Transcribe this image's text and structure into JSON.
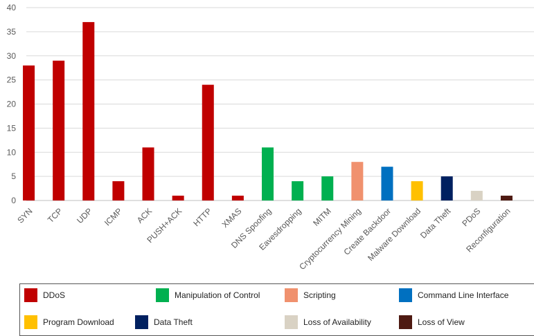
{
  "chart_data": {
    "type": "bar",
    "title": "",
    "xlabel": "",
    "ylabel": "",
    "ylim": [
      0,
      40
    ],
    "yticks": [
      0,
      5,
      10,
      15,
      20,
      25,
      30,
      35,
      40
    ],
    "grid": true,
    "legend_position": "bottom",
    "categories": [
      "SYN",
      "TCP",
      "UDP",
      "ICMP",
      "ACK",
      "PUSH+ACK",
      "HTTP",
      "XMAS",
      "DNS Spoofing",
      "Eavesdropping",
      "MITM",
      "Cryptocurrency Mining",
      "Create Backdoor",
      "Malware Download",
      "Data Theft",
      "PDoS",
      "Reconfiguration"
    ],
    "values": [
      28,
      29,
      37,
      4,
      11,
      1,
      24,
      1,
      11,
      4,
      5,
      8,
      7,
      4,
      5,
      2,
      1
    ],
    "bar_groups": [
      "DDoS",
      "DDoS",
      "DDoS",
      "DDoS",
      "DDoS",
      "DDoS",
      "DDoS",
      "DDoS",
      "Manipulation of Control",
      "Manipulation of Control",
      "Manipulation of Control",
      "Scripting",
      "Command Line Interface",
      "Program Download",
      "Data Theft",
      "Loss of Availability",
      "Loss of View"
    ],
    "legend": [
      {
        "label": "DDoS",
        "color": "#c00000"
      },
      {
        "label": "Manipulation of Control",
        "color": "#00b050"
      },
      {
        "label": "Scripting",
        "color": "#f0916e"
      },
      {
        "label": "Command Line Interface",
        "color": "#0070c0"
      },
      {
        "label": "Program Download",
        "color": "#ffc000"
      },
      {
        "label": "Data Theft",
        "color": "#002060"
      },
      {
        "label": "Loss of Availability",
        "color": "#d9d2c4"
      },
      {
        "label": "Loss of View",
        "color": "#4e1a12"
      }
    ],
    "colors": {
      "grid": "#d9d9d9",
      "axis": "#bfbfbf",
      "text": "#595959"
    }
  }
}
